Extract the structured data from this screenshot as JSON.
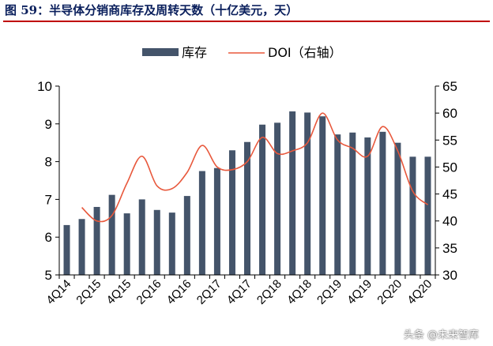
{
  "figure": {
    "title": "图 59：半导体分销商库存及周转天数（十亿美元，天）",
    "watermark": "头条 @未来智库"
  },
  "chart_data": {
    "type": "bar",
    "categories": [
      "4Q14",
      "1Q15",
      "2Q15",
      "3Q15",
      "4Q15",
      "1Q16",
      "2Q16",
      "3Q16",
      "4Q16",
      "1Q17",
      "2Q17",
      "3Q17",
      "4Q17",
      "1Q18",
      "2Q18",
      "3Q18",
      "4Q18",
      "1Q19",
      "2Q19",
      "3Q19",
      "4Q19",
      "1Q20",
      "2Q20",
      "3Q20",
      "4Q20"
    ],
    "x_tick_labels": [
      "4Q14",
      "",
      "2Q15",
      "",
      "4Q15",
      "",
      "2Q16",
      "",
      "4Q16",
      "",
      "2Q17",
      "",
      "4Q17",
      "",
      "2Q18",
      "",
      "4Q18",
      "",
      "2Q19",
      "",
      "4Q19",
      "",
      "2Q20",
      "",
      "4Q20"
    ],
    "series": [
      {
        "name": "库存",
        "axis": "left",
        "style": "bar",
        "color": "#44546a",
        "values": [
          6.32,
          6.48,
          6.8,
          7.12,
          6.63,
          7.0,
          6.72,
          6.65,
          7.09,
          7.75,
          7.83,
          8.3,
          8.52,
          8.98,
          9.03,
          9.33,
          9.3,
          9.2,
          8.72,
          8.77,
          8.64,
          8.79,
          8.5,
          8.13,
          8.13
        ]
      },
      {
        "name": "DOI（右轴）",
        "axis": "right",
        "style": "line",
        "color": "#e8583c",
        "values": [
          null,
          42.5,
          40.0,
          41.0,
          47.0,
          52.0,
          46.5,
          46.0,
          49.0,
          54.0,
          50.0,
          49.5,
          51.0,
          55.5,
          52.5,
          53.0,
          54.5,
          60.0,
          55.0,
          53.5,
          52.0,
          57.5,
          53.0,
          45.5,
          43.0
        ]
      }
    ],
    "y_left": {
      "min": 5,
      "max": 10,
      "ticks": [
        5,
        6,
        7,
        8,
        9,
        10
      ]
    },
    "y_right": {
      "min": 30,
      "max": 65,
      "ticks": [
        30,
        35,
        40,
        45,
        50,
        55,
        60,
        65
      ]
    },
    "legend": {
      "position": "top"
    },
    "grid": false
  }
}
